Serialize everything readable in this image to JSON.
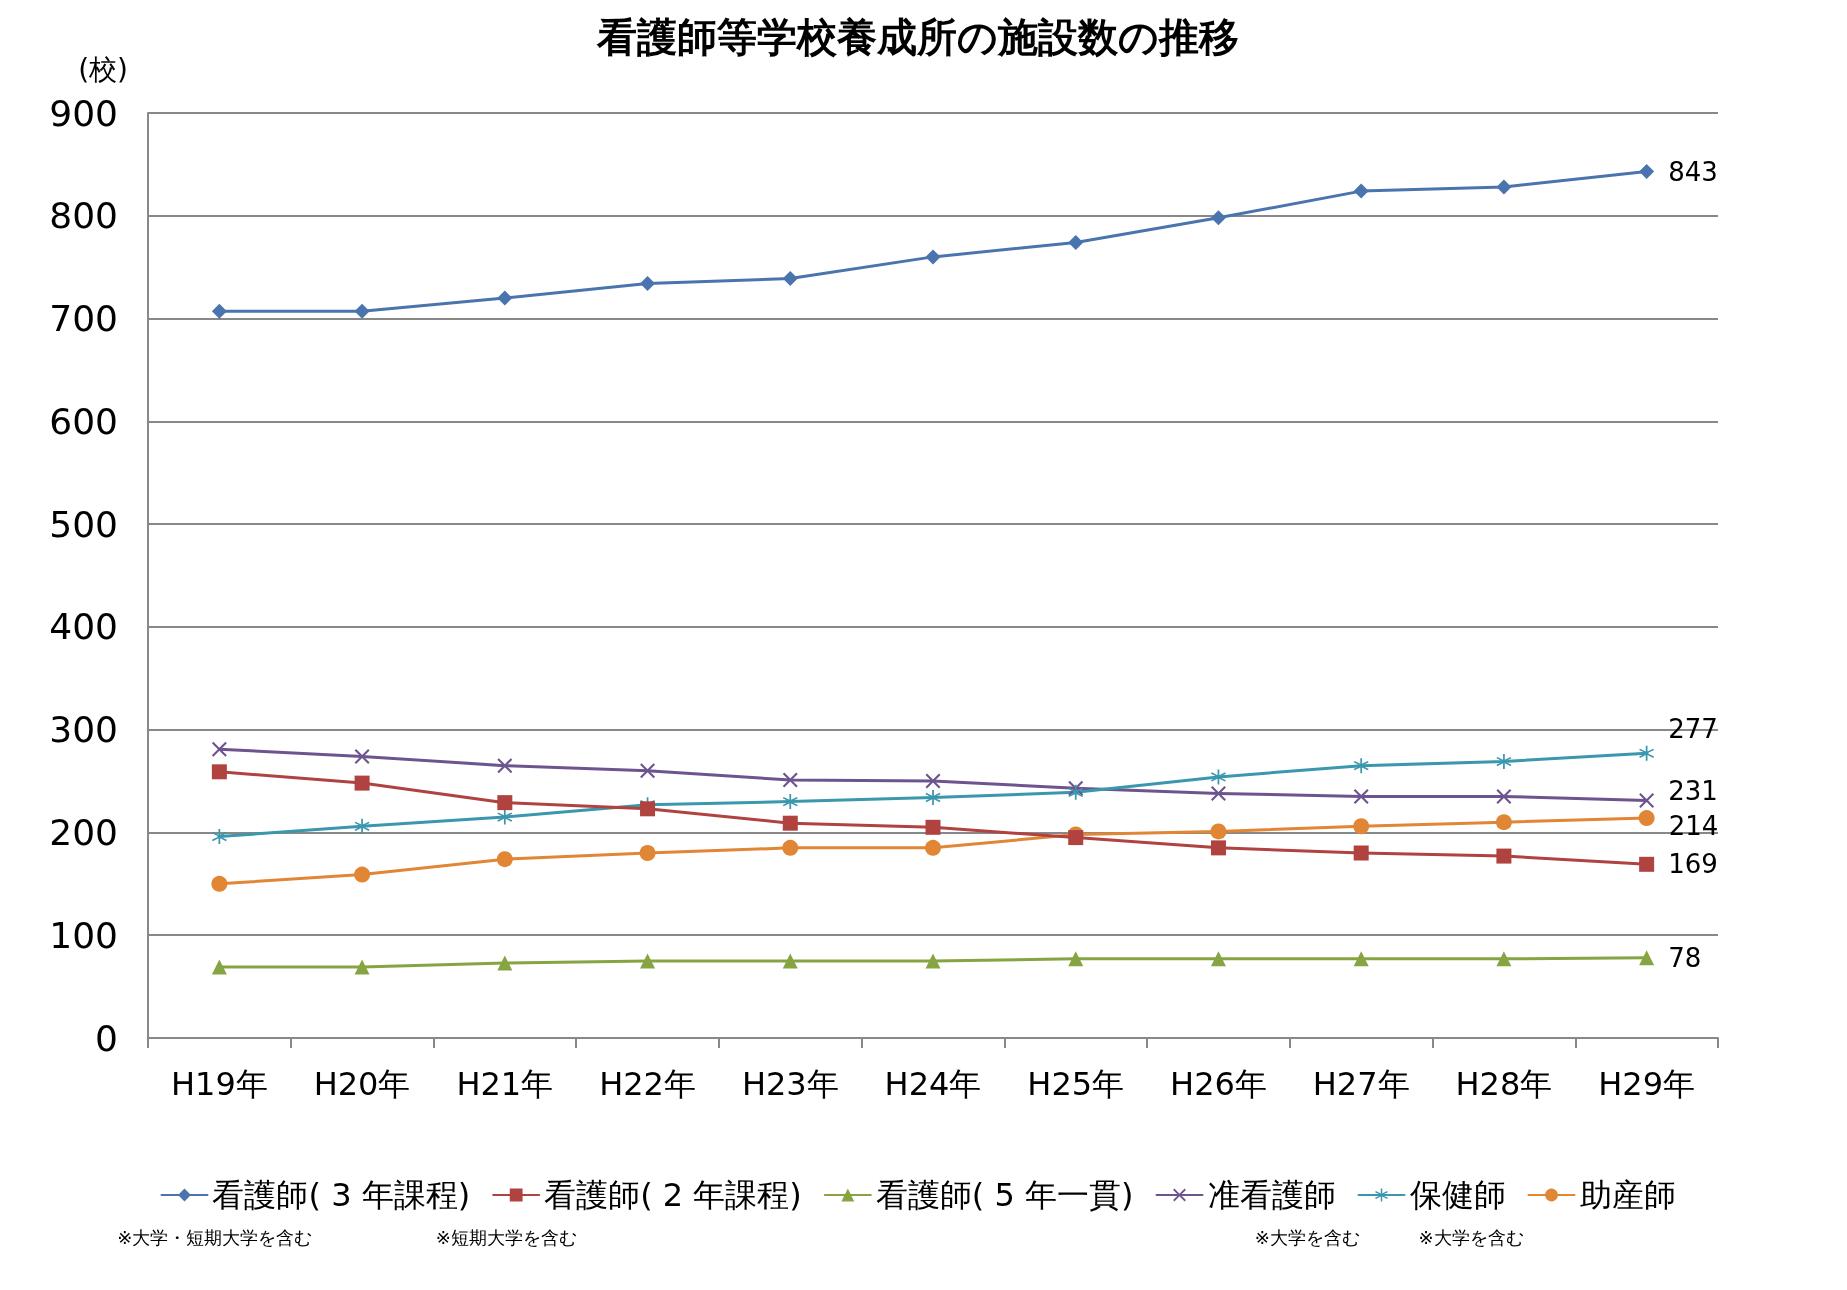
{
  "chart_data": {
    "type": "line",
    "title": "看護師等学校養成所の施設数の推移",
    "ylabel": "(校)",
    "categories": [
      "H19年",
      "H20年",
      "H21年",
      "H22年",
      "H23年",
      "H24年",
      "H25年",
      "H26年",
      "H27年",
      "H28年",
      "H29年"
    ],
    "ylim": [
      0,
      900
    ],
    "yticks": [
      0,
      100,
      200,
      300,
      400,
      500,
      600,
      700,
      800,
      900
    ],
    "grid": "y",
    "legend": "bottom",
    "annotations": [
      "※大学・短期大学を含む",
      "※短期大学を含む",
      "※大学を含む",
      "※大学を含む"
    ],
    "series": [
      {
        "name": "看護師( 3 年課程)",
        "color": "#4a74ad",
        "marker": "diamond",
        "values": [
          707,
          707,
          720,
          734,
          739,
          760,
          774,
          798,
          824,
          828,
          843
        ],
        "value_labels": [
          null,
          null,
          null,
          null,
          null,
          null,
          null,
          null,
          null,
          null,
          "843"
        ]
      },
      {
        "name": "看護師( 2 年課程)",
        "color": "#b0423f",
        "marker": "square",
        "values": [
          259,
          248,
          229,
          223,
          209,
          205,
          195,
          185,
          180,
          177,
          169
        ],
        "value_labels": [
          null,
          null,
          null,
          null,
          null,
          null,
          null,
          null,
          null,
          null,
          "169"
        ]
      },
      {
        "name": "看護師( 5 年一貫)",
        "color": "#86a542",
        "marker": "triangle",
        "values": [
          69,
          69,
          73,
          75,
          75,
          75,
          77,
          77,
          77,
          77,
          78
        ],
        "value_labels": [
          null,
          null,
          null,
          null,
          null,
          null,
          null,
          null,
          null,
          null,
          "78"
        ]
      },
      {
        "name": "准看護師",
        "color": "#6e548f",
        "marker": "cross",
        "values": [
          281,
          274,
          265,
          260,
          251,
          250,
          243,
          238,
          235,
          235,
          231
        ],
        "value_labels": [
          null,
          null,
          null,
          null,
          null,
          null,
          null,
          null,
          null,
          null,
          "231"
        ]
      },
      {
        "name": "保健師",
        "color": "#3b97ad",
        "marker": "star",
        "values": [
          196,
          206,
          215,
          227,
          230,
          234,
          239,
          254,
          265,
          269,
          277
        ],
        "value_labels": [
          null,
          null,
          null,
          null,
          null,
          null,
          null,
          null,
          null,
          null,
          "277"
        ]
      },
      {
        "name": "助産師",
        "color": "#e08634",
        "marker": "circle",
        "values": [
          150,
          159,
          174,
          180,
          185,
          185,
          198,
          201,
          206,
          210,
          214
        ],
        "value_labels": [
          null,
          null,
          null,
          null,
          null,
          null,
          null,
          null,
          null,
          null,
          "214"
        ]
      }
    ]
  }
}
